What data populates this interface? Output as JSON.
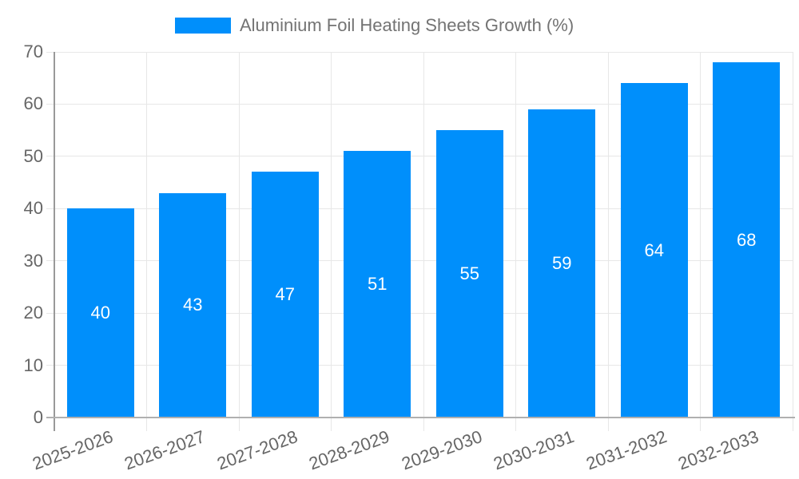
{
  "legend": {
    "label": "Aluminium Foil Heating Sheets Growth (%)"
  },
  "chart_data": {
    "type": "bar",
    "title": "Aluminium Foil Heating Sheets Growth (%)",
    "categories": [
      "2025-2026",
      "2026-2027",
      "2027-2028",
      "2028-2029",
      "2029-2030",
      "2030-2031",
      "2031-2032",
      "2032-2033"
    ],
    "values": [
      40,
      43,
      47,
      51,
      55,
      59,
      64,
      68
    ],
    "xlabel": "",
    "ylabel": "",
    "ylim": [
      0,
      70
    ],
    "yticks": [
      0,
      10,
      20,
      30,
      40,
      50,
      60,
      70
    ],
    "grid": true,
    "legend_position": "top",
    "data_labels_position": "inside-center",
    "x_label_rotation_deg": -20,
    "colors": {
      "bar": "#008FFB",
      "grid": "#e7e7e7",
      "y_axis_line": "#999999",
      "x_axis_line": "#b0b0b0",
      "tick_label": "#666666",
      "legend_text": "#737373",
      "data_label": "#ffffff",
      "background": "#ffffff"
    }
  }
}
